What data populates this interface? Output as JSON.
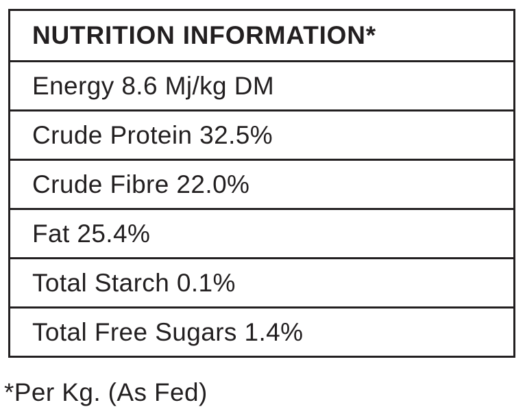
{
  "table": {
    "title": "NUTRITION INFORMATION*",
    "rows": [
      "Energy 8.6 Mj/kg DM",
      "Crude Protein 32.5%",
      "Crude Fibre 22.0%",
      "Fat 25.4%",
      "Total Starch 0.1%",
      "Total Free Sugars 1.4%"
    ]
  },
  "footnote": "*Per Kg. (As Fed)",
  "colors": {
    "text": "#221f20",
    "border": "#221f20",
    "background": "#ffffff"
  }
}
